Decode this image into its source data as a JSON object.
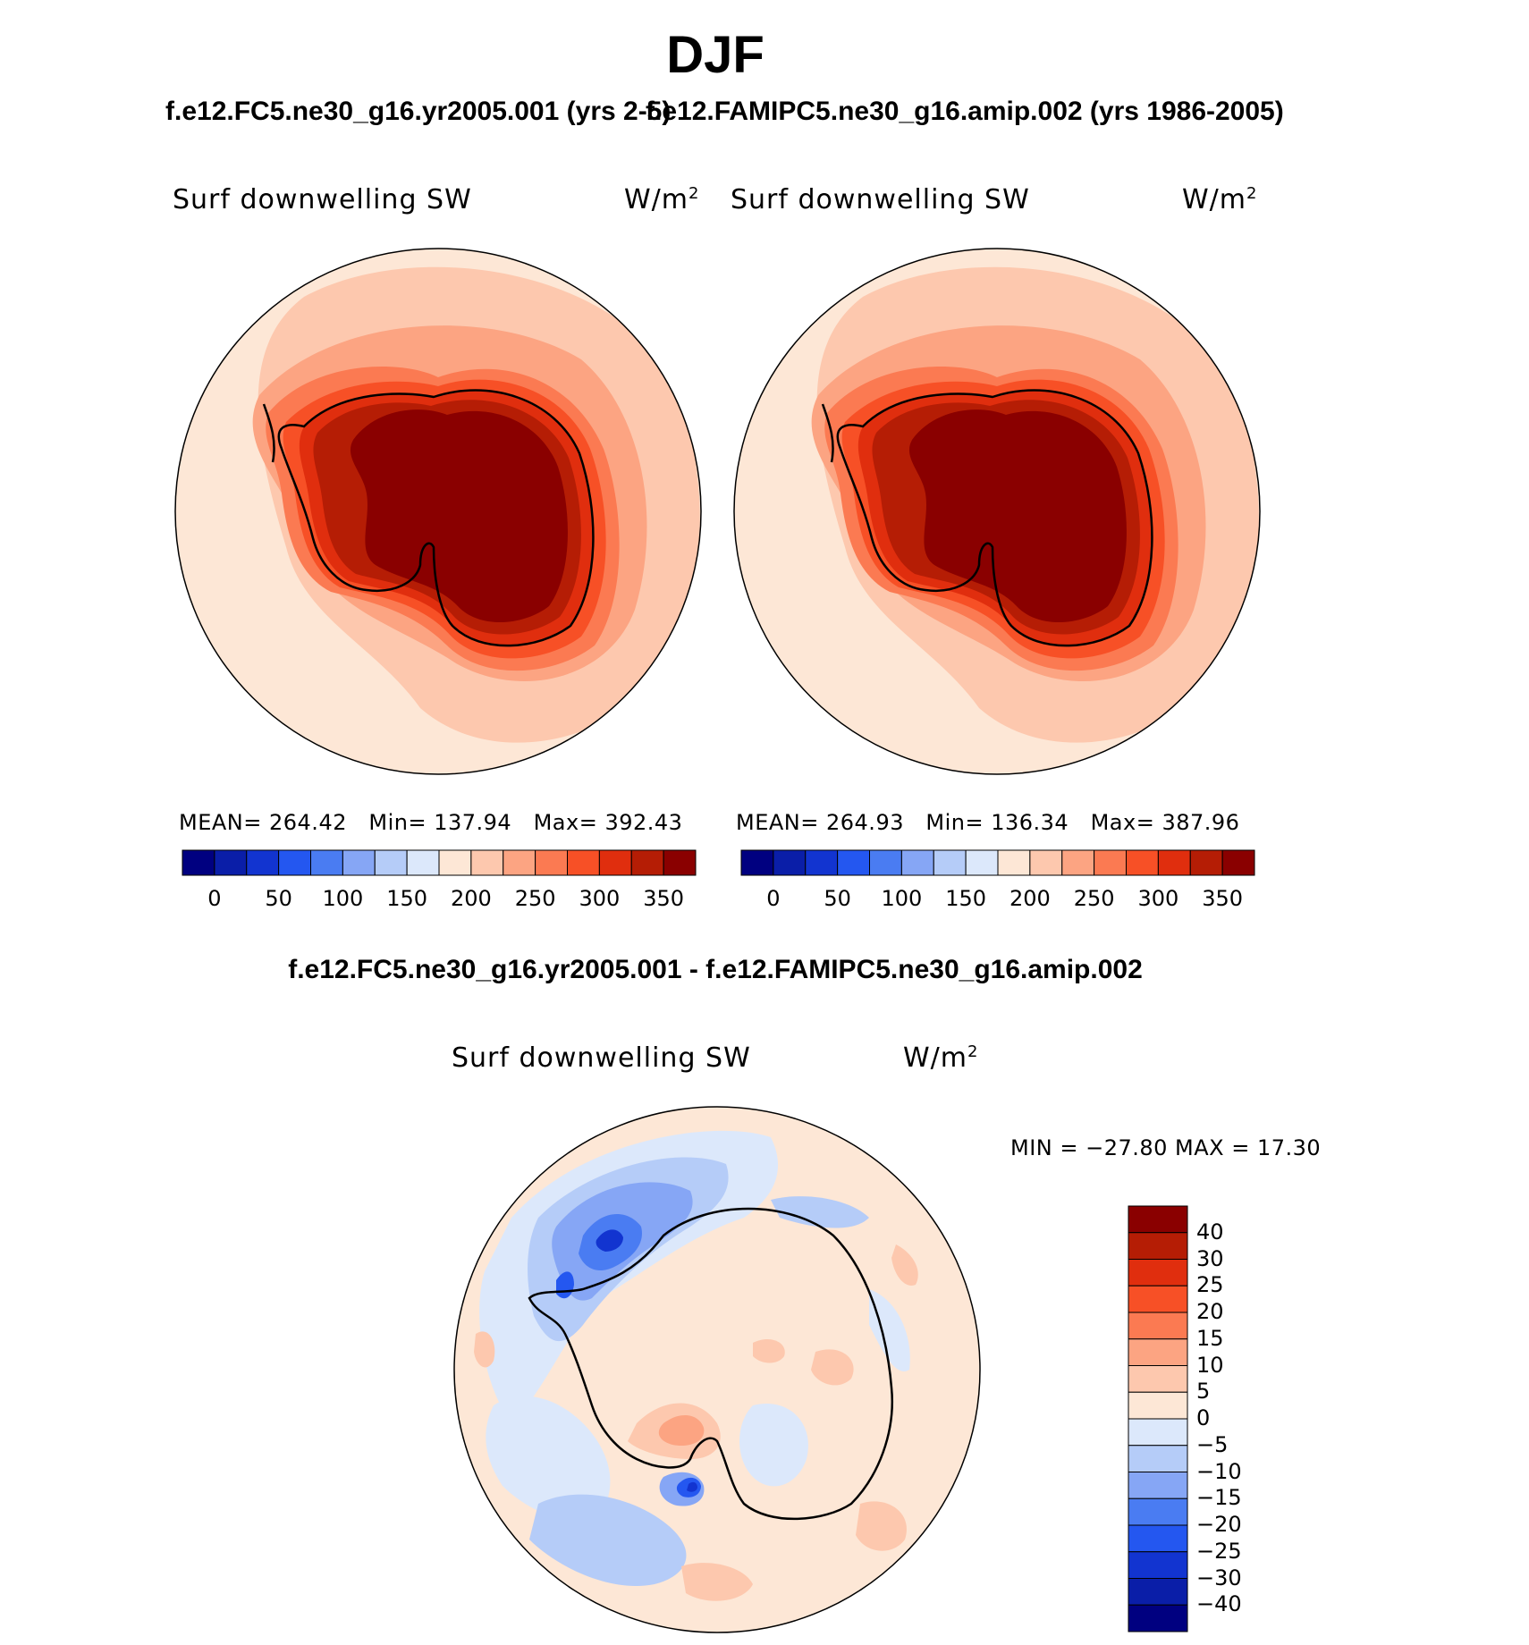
{
  "figure": {
    "title": "DJF",
    "case_a": "f.e12.FC5.ne30_g16.yr2005.001 (yrs 2-5)",
    "case_b": "f.e12.FAMIPC5.ne30_g16.amip.002 (yrs 1986-2005)",
    "diff_title": "f.e12.FC5.ne30_g16.yr2005.001 - f.e12.FAMIPC5.ne30_g16.amip.002"
  },
  "panels": [
    {
      "id": "case-a",
      "variable": "Surf downwelling SW",
      "units": "W/m",
      "units_exp": "2",
      "stats": {
        "mean_label": "MEAN=",
        "mean": "264.42",
        "min_label": "Min=",
        "min": "137.94",
        "max_label": "Max=",
        "max": "392.43"
      }
    },
    {
      "id": "case-b",
      "variable": "Surf downwelling SW",
      "units": "W/m",
      "units_exp": "2",
      "stats": {
        "mean_label": "MEAN=",
        "mean": "264.93",
        "min_label": "Min=",
        "min": "136.34",
        "max_label": "Max=",
        "max": "387.96"
      }
    },
    {
      "id": "difference",
      "variable": "Surf downwelling SW",
      "units": "W/m",
      "units_exp": "2",
      "minmax_text": "MIN = −27.80 MAX =  17.30"
    }
  ],
  "colorbar_abs": {
    "colors": [
      "#000080",
      "#0a1ea8",
      "#1234d0",
      "#2457f0",
      "#4a7cf2",
      "#86a6f5",
      "#b5ccf8",
      "#dce8fb",
      "#fde7d6",
      "#fdc8ae",
      "#fca482",
      "#fb7a52",
      "#f75026",
      "#e02e0e",
      "#b51d05",
      "#8a0000"
    ],
    "tick_labels": [
      "0",
      "50",
      "100",
      "150",
      "200",
      "250",
      "300",
      "350"
    ]
  },
  "colorbar_diff": {
    "colors": [
      "#000080",
      "#0a1ea8",
      "#1234d0",
      "#2457f0",
      "#4a7cf2",
      "#86a6f5",
      "#b5ccf8",
      "#dce8fb",
      "#fde7d6",
      "#fdc8ae",
      "#fca482",
      "#fb7a52",
      "#f75026",
      "#e02e0e",
      "#b51d05",
      "#8a0000"
    ],
    "tick_labels": [
      "40",
      "30",
      "25",
      "20",
      "15",
      "10",
      "5",
      "0",
      "−5",
      "−10",
      "−15",
      "−20",
      "−25",
      "−30",
      "−40"
    ]
  }
}
